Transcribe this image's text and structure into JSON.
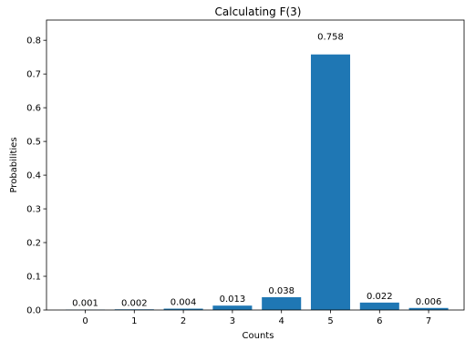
{
  "chart_data": {
    "type": "bar",
    "title": "Calculating F(3)",
    "xlabel": "Counts",
    "ylabel": "Probabilities",
    "categories": [
      "0",
      "1",
      "2",
      "3",
      "4",
      "5",
      "6",
      "7"
    ],
    "values": [
      0.001,
      0.002,
      0.004,
      0.013,
      0.038,
      0.758,
      0.022,
      0.006
    ],
    "value_labels": [
      "0.001",
      "0.002",
      "0.004",
      "0.013",
      "0.038",
      "0.758",
      "0.022",
      "0.006"
    ],
    "ylim": [
      0,
      0.86
    ],
    "yticks": [
      0.0,
      0.1,
      0.2,
      0.3,
      0.4,
      0.5,
      0.6,
      0.7,
      0.8
    ],
    "ytick_labels": [
      "0.0",
      "0.1",
      "0.2",
      "0.3",
      "0.4",
      "0.5",
      "0.6",
      "0.7",
      "0.8"
    ],
    "bar_color": "#1f77b4",
    "grid": false,
    "legend": "none"
  }
}
